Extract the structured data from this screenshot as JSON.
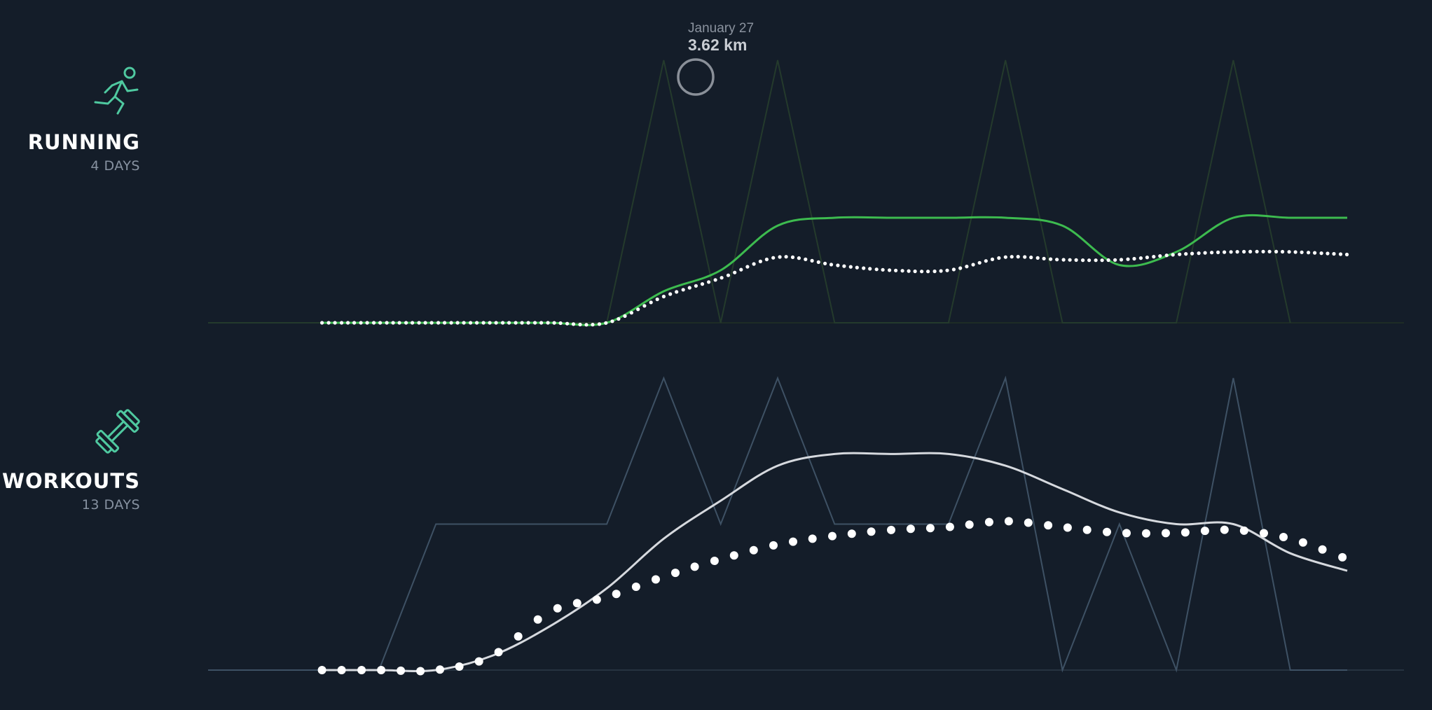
{
  "colors": {
    "background": "#141d29",
    "accent_icon": "#4fc9a0",
    "running_line": "#3dbb4f",
    "running_bars": "#243a2c",
    "workouts_line": "#d6d9de",
    "workouts_bars": "#3e5164",
    "dots": "#ffffff",
    "baseline_running": "#213126",
    "baseline_workouts": "#2c3a48",
    "marker": "#8a9099"
  },
  "panels": [
    {
      "id": "running",
      "title": "RUNNING",
      "subtitle": "4 DAYS",
      "icon": "runner-icon"
    },
    {
      "id": "workouts",
      "title": "WORKOUTS",
      "subtitle": "13 DAYS",
      "icon": "dumbbell-icon"
    }
  ],
  "tooltip": {
    "date": "January 27",
    "value": "3.62 km"
  },
  "chart_data": [
    {
      "type": "line",
      "panel": "running",
      "x": [
        -2,
        -1,
        0,
        1,
        2,
        3,
        4,
        5,
        6,
        7,
        8,
        9,
        10,
        11,
        12,
        13,
        14,
        15,
        16,
        17,
        18,
        19
      ],
      "series": [
        {
          "kind": "daily",
          "values": [
            0,
            0,
            0,
            0,
            0,
            0,
            0,
            0,
            1,
            0,
            1,
            0,
            0,
            0,
            1,
            0,
            0,
            0,
            1,
            0,
            null,
            null
          ]
        },
        {
          "kind": "rolling",
          "values": [
            null,
            null,
            0,
            0,
            0,
            0,
            0,
            0,
            0.12,
            0.2,
            0.37,
            0.4,
            0.4,
            0.4,
            0.4,
            0.37,
            0.22,
            0.27,
            0.4,
            0.4,
            0.4,
            null
          ]
        },
        {
          "kind": "dotted",
          "values": [
            null,
            null,
            0,
            0,
            0,
            0,
            0,
            0,
            0.1,
            0.17,
            0.25,
            0.22,
            0.2,
            0.2,
            0.25,
            0.24,
            0.24,
            0.26,
            0.27,
            0.27,
            0.26,
            null
          ]
        }
      ],
      "ylim": [
        0,
        1
      ]
    },
    {
      "type": "line",
      "panel": "workouts",
      "x": [
        -2,
        -1,
        0,
        1,
        2,
        3,
        4,
        5,
        6,
        7,
        8,
        9,
        10,
        11,
        12,
        13,
        14,
        15,
        16,
        17,
        18,
        19
      ],
      "series": [
        {
          "kind": "daily",
          "values": [
            0,
            0,
            0,
            0,
            0.5,
            0.5,
            0.5,
            0.5,
            1,
            0.5,
            1,
            0.5,
            0.5,
            0.5,
            1,
            0,
            0.5,
            0,
            1,
            0,
            0,
            null
          ]
        },
        {
          "kind": "rolling",
          "values": [
            null,
            null,
            0,
            0,
            0,
            0.05,
            0.15,
            0.28,
            0.45,
            0.58,
            0.7,
            0.74,
            0.74,
            0.74,
            0.7,
            0.62,
            0.54,
            0.5,
            0.5,
            0.4,
            0.34,
            null
          ]
        },
        {
          "kind": "dotted",
          "values": [
            null,
            null,
            0,
            0,
            0,
            0.05,
            0.2,
            0.25,
            0.32,
            0.38,
            0.43,
            0.46,
            0.48,
            0.49,
            0.51,
            0.49,
            0.47,
            0.47,
            0.48,
            0.45,
            0.38,
            null
          ]
        }
      ],
      "ylim": [
        0,
        1
      ]
    }
  ]
}
